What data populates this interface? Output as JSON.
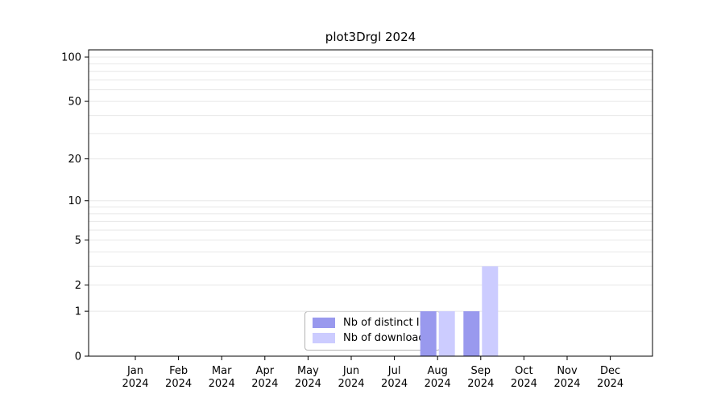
{
  "figure": {
    "title": "plot3Drgl 2024"
  },
  "colors": {
    "distinct_ips": "#9999ee",
    "downloads": "#ccccff",
    "grid": "#e7e7e7",
    "axis": "#000000",
    "background": "#ffffff",
    "legend_border": "#b3b3b3"
  },
  "chart_data": {
    "type": "bar",
    "title": "plot3Drgl 2024",
    "x": [
      "Jan 2024",
      "Feb 2024",
      "Mar 2024",
      "Apr 2024",
      "May 2024",
      "Jun 2024",
      "Jul 2024",
      "Aug 2024",
      "Sep 2024",
      "Oct 2024",
      "Nov 2024",
      "Dec 2024"
    ],
    "x_tick_top": [
      "Jan",
      "Feb",
      "Mar",
      "Apr",
      "May",
      "Jun",
      "Jul",
      "Aug",
      "Sep",
      "Oct",
      "Nov",
      "Dec"
    ],
    "x_tick_bottom": [
      "2024",
      "2024",
      "2024",
      "2024",
      "2024",
      "2024",
      "2024",
      "2024",
      "2024",
      "2024",
      "2024",
      "2024"
    ],
    "series": [
      {
        "name": "Nb of distinct IPs",
        "color": "#9999ee",
        "values": [
          0,
          0,
          0,
          0,
          0,
          0,
          0,
          1,
          1,
          0,
          0,
          0
        ]
      },
      {
        "name": "Nb of downloads",
        "color": "#ccccff",
        "values": [
          0,
          0,
          0,
          0,
          0,
          0,
          0,
          1,
          3,
          0,
          0,
          0
        ]
      }
    ],
    "y_ticks": [
      0,
      1,
      2,
      5,
      10,
      20,
      50,
      100
    ],
    "y_scale": "log1p",
    "ylim": [
      0,
      100
    ],
    "grid": true,
    "minor_gridlines": [
      1,
      2,
      3,
      4,
      5,
      6,
      7,
      8,
      9,
      10,
      20,
      30,
      40,
      50,
      60,
      70,
      80,
      90,
      100
    ],
    "legend_position": "inside-bottom-center"
  }
}
